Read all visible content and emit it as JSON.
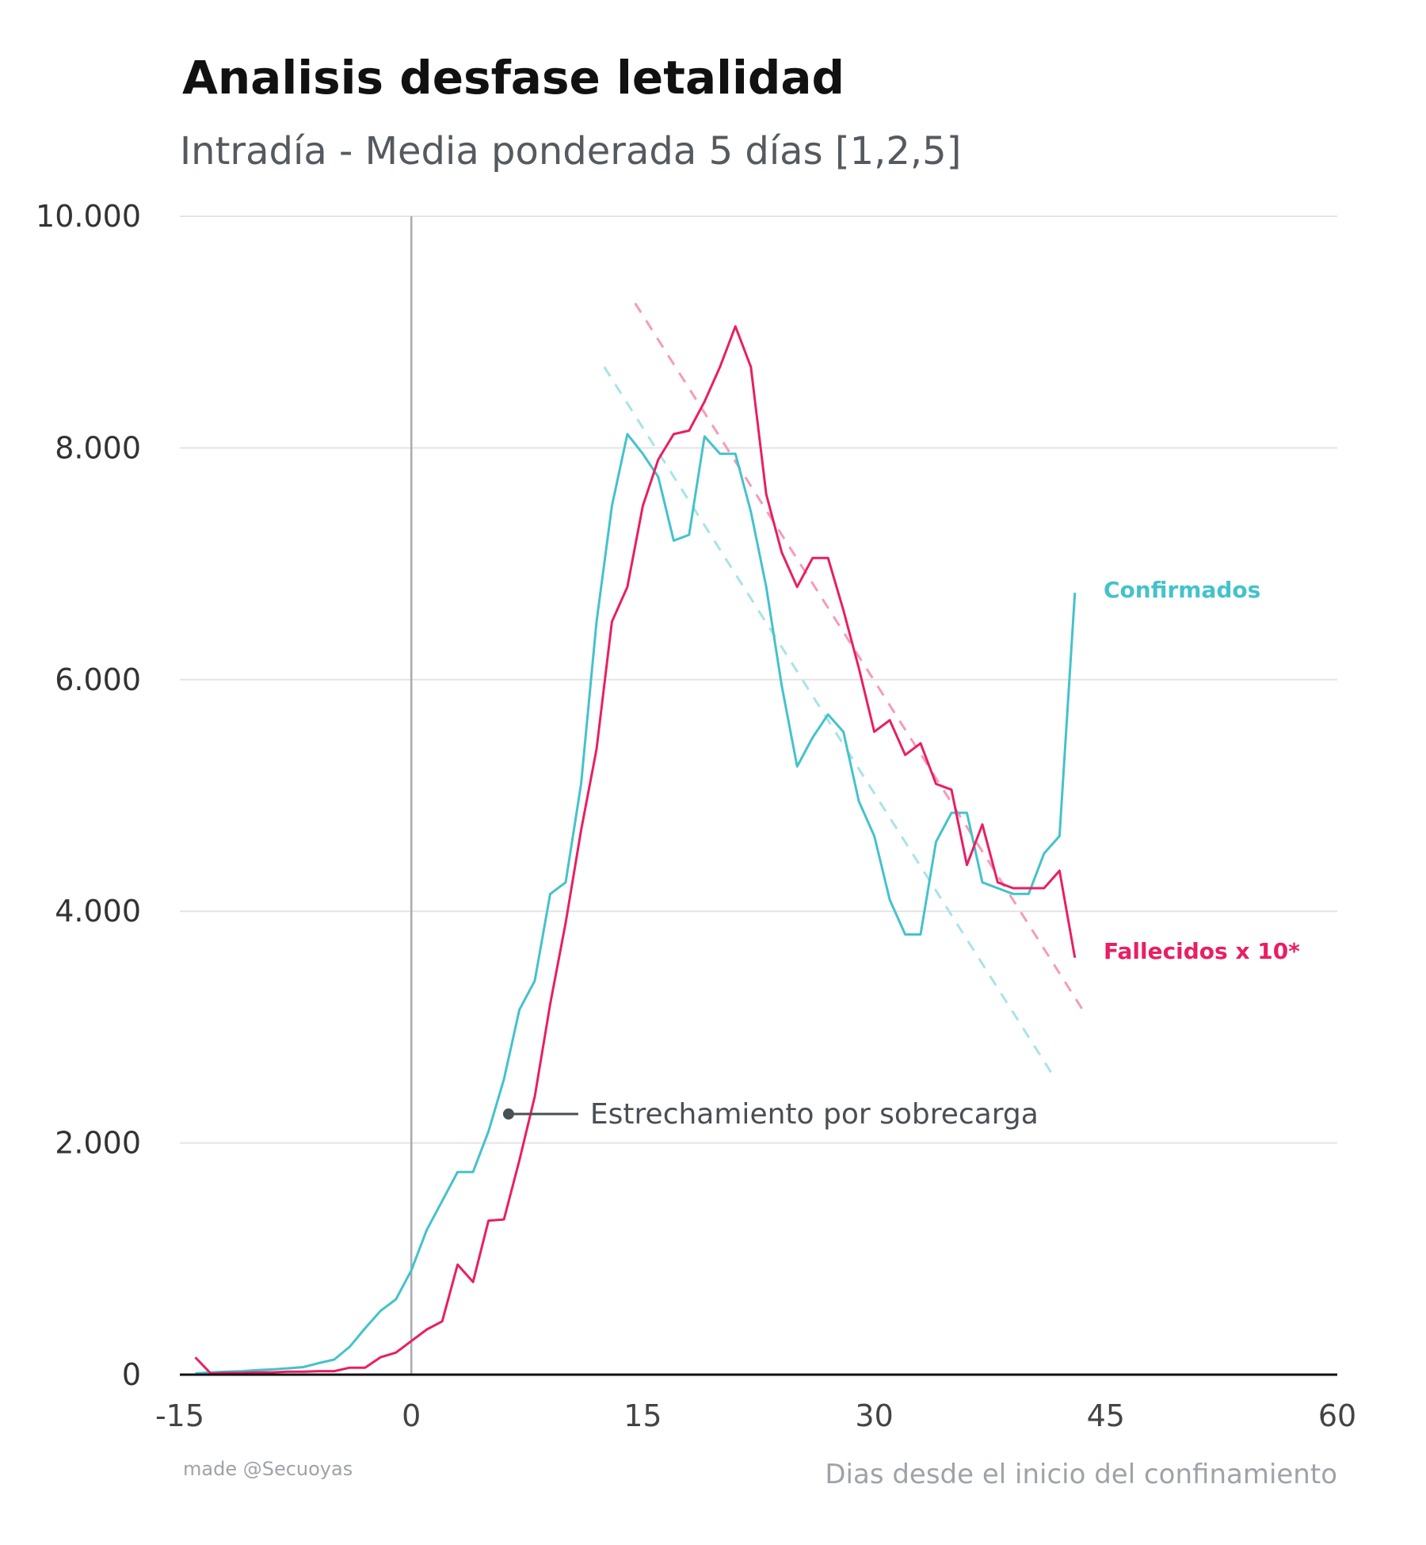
{
  "chart_data": {
    "type": "line",
    "title": "Analisis desfase letalidad",
    "subtitle": "Intradía - Media ponderada 5 días [1,2,5]",
    "xlabel": "Dias desde el inicio del confinamiento",
    "ylabel": "",
    "xlim": [
      -15,
      60
    ],
    "ylim": [
      0,
      10000
    ],
    "xticks": [
      -15,
      0,
      15,
      30,
      45,
      60
    ],
    "xtick_labels": [
      "-15",
      "0",
      "15",
      "30",
      "45",
      "60"
    ],
    "yticks": [
      0,
      2000,
      4000,
      6000,
      8000,
      10000
    ],
    "ytick_labels": [
      "0",
      "2.000",
      "4.000",
      "6.000",
      "8.000",
      "10.000"
    ],
    "grid": "horizontal",
    "reference_line_x": 0,
    "series": [
      {
        "name": "Confirmados",
        "color": "#44c2cb",
        "x": [
          -14,
          -13,
          -12,
          -11,
          -10,
          -9,
          -8,
          -7,
          -6,
          -5,
          -4,
          -3,
          -2,
          -1,
          0,
          1,
          2,
          3,
          4,
          5,
          6,
          7,
          8,
          9,
          10,
          11,
          12,
          13,
          14,
          15,
          16,
          17,
          18,
          19,
          20,
          21,
          22,
          23,
          24,
          25,
          26,
          27,
          28,
          29,
          30,
          31,
          32,
          33,
          34,
          35,
          36,
          37,
          38,
          39,
          40,
          41,
          42,
          43
        ],
        "values": [
          10,
          20,
          25,
          30,
          40,
          45,
          55,
          65,
          100,
          130,
          240,
          400,
          550,
          650,
          900,
          1250,
          1500,
          1750,
          1750,
          2100,
          2550,
          3150,
          3400,
          4150,
          4250,
          5100,
          6500,
          7500,
          8120,
          7950,
          7750,
          7200,
          7250,
          8100,
          7950,
          7950,
          7450,
          6800,
          5950,
          5250,
          5500,
          5700,
          5550,
          4950,
          4650,
          4100,
          3800,
          3800,
          4600,
          4850,
          4850,
          4250,
          4200,
          4150,
          4150,
          4500,
          4650,
          6750
        ]
      },
      {
        "name": "Fallecidos x 10*",
        "color": "#e91e63",
        "x": [
          -14,
          -13,
          -12,
          -11,
          -10,
          -9,
          -8,
          -7,
          -6,
          -5,
          -4,
          -3,
          -2,
          -1,
          0,
          1,
          2,
          3,
          4,
          5,
          6,
          7,
          8,
          9,
          10,
          11,
          12,
          13,
          14,
          15,
          16,
          17,
          18,
          19,
          20,
          21,
          22,
          23,
          24,
          25,
          26,
          27,
          28,
          29,
          30,
          31,
          32,
          33,
          34,
          35,
          36,
          37,
          38,
          39,
          40,
          41,
          42,
          43
        ],
        "values": [
          150,
          10,
          15,
          15,
          20,
          20,
          25,
          25,
          30,
          30,
          60,
          60,
          150,
          190,
          290,
          390,
          460,
          950,
          800,
          1330,
          1340,
          1850,
          2400,
          3200,
          3900,
          4700,
          5400,
          6500,
          6800,
          7500,
          7900,
          8120,
          8150,
          8400,
          8700,
          9050,
          8700,
          7600,
          7100,
          6800,
          7050,
          7050,
          6600,
          6100,
          5550,
          5650,
          5350,
          5450,
          5100,
          5050,
          4400,
          4750,
          4250,
          4200,
          4200,
          4200,
          4350,
          3600
        ]
      }
    ],
    "trendlines": [
      {
        "series": "Confirmados",
        "x": [
          12.5,
          41.5
        ],
        "values": [
          8700,
          2600
        ],
        "color": "#a8e3e8",
        "style": "dashed"
      },
      {
        "series": "Fallecidos x 10*",
        "x": [
          14.5,
          43.5
        ],
        "values": [
          9250,
          3150
        ],
        "color": "#f59bbb",
        "style": "dashed"
      }
    ],
    "annotation": {
      "text": "Estrechamiento por sobrecarga",
      "x": 6.3,
      "y": 2250
    },
    "credit": "made @Secuoyas"
  }
}
